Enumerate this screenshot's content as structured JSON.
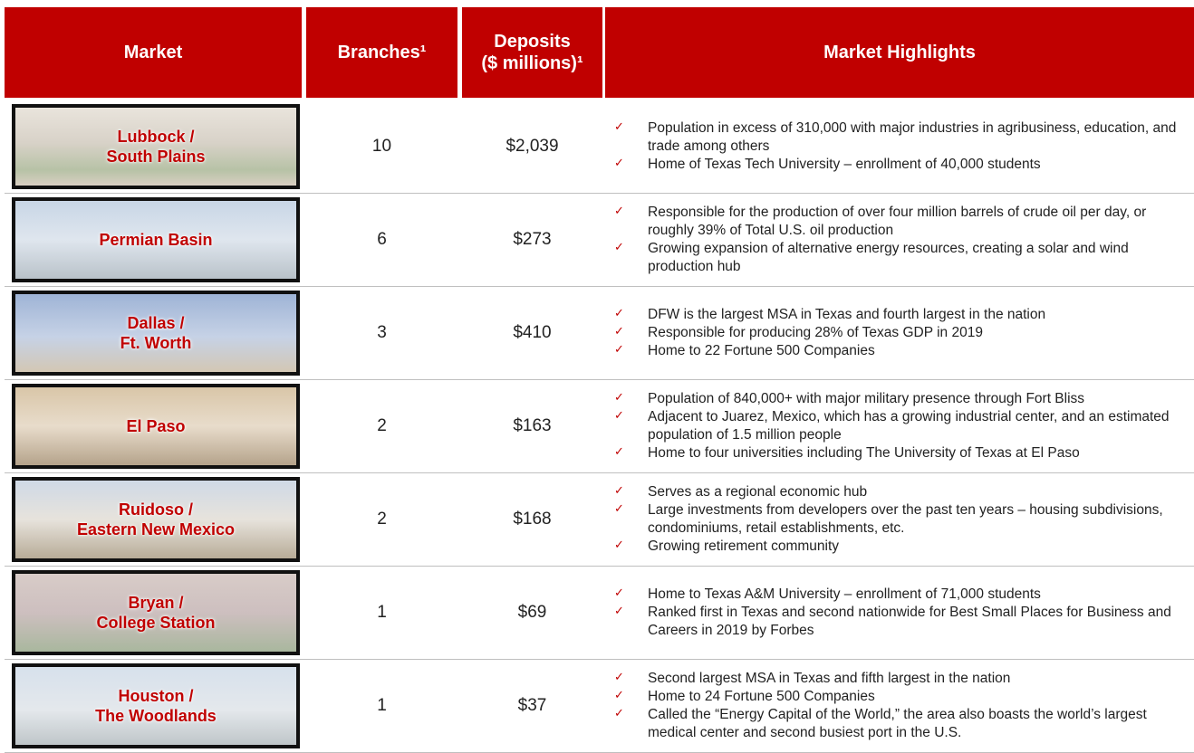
{
  "table": {
    "header": {
      "market": "Market",
      "branches": "Branches¹",
      "deposits": [
        "Deposits",
        "($ millions)¹"
      ],
      "highlights": "Market Highlights"
    },
    "rows": [
      {
        "market": [
          "Lubbock /",
          "South Plains"
        ],
        "branches": "10",
        "deposits": "$2,039",
        "highlights": [
          "Population in excess of 310,000 with major industries in agribusiness, education, and trade among others",
          "Home of Texas Tech University – enrollment of 40,000 students"
        ]
      },
      {
        "market": [
          "Permian Basin"
        ],
        "branches": "6",
        "deposits": "$273",
        "highlights": [
          "Responsible for the production of over four million barrels of crude oil per day, or roughly 39% of Total U.S. oil production",
          "Growing expansion of alternative energy resources, creating a solar and wind production hub"
        ]
      },
      {
        "market": [
          "Dallas /",
          "Ft. Worth"
        ],
        "branches": "3",
        "deposits": "$410",
        "highlights": [
          "DFW is the largest MSA in Texas and fourth largest in the nation",
          "Responsible for producing 28% of Texas GDP in 2019",
          "Home to 22 Fortune 500 Companies"
        ]
      },
      {
        "market": [
          "El Paso"
        ],
        "branches": "2",
        "deposits": "$163",
        "highlights": [
          "Population of 840,000+ with major military presence through Fort Bliss",
          "Adjacent to Juarez, Mexico, which has a growing industrial center, and an estimated population of 1.5 million people",
          "Home to four universities including The University of Texas at El Paso"
        ]
      },
      {
        "market": [
          "Ruidoso /",
          "Eastern New Mexico"
        ],
        "branches": "2",
        "deposits": "$168",
        "highlights": [
          "Serves as a regional economic hub",
          "Large investments from developers over the past ten years – housing subdivisions, condominiums, retail establishments, etc.",
          "Growing retirement community"
        ]
      },
      {
        "market": [
          "Bryan /",
          "College Station"
        ],
        "branches": "1",
        "deposits": "$69",
        "highlights": [
          "Home to Texas A&M University – enrollment of 71,000 students",
          "Ranked first in Texas and second nationwide for Best Small Places for Business and Careers in 2019 by Forbes"
        ]
      },
      {
        "market": [
          "Houston /",
          "The Woodlands"
        ],
        "branches": "1",
        "deposits": "$37",
        "highlights": [
          "Second largest MSA in Texas and fifth largest in the nation",
          "Home to 24 Fortune 500 Companies",
          "Called the “Energy Capital of the World,” the area also boasts the world’s largest medical center and second busiest port in the U.S."
        ]
      }
    ]
  }
}
